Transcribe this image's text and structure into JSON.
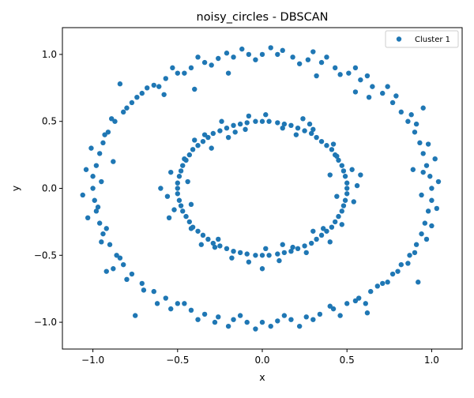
{
  "chart_data": {
    "type": "scatter",
    "title": "noisy_circles - DBSCAN",
    "xlabel": "x",
    "ylabel": "y",
    "xlim": [
      -1.18,
      1.18
    ],
    "ylim": [
      -1.2,
      1.2
    ],
    "xticks": [
      -1.0,
      -0.5,
      0.0,
      0.5,
      1.0
    ],
    "xtick_labels": [
      "−1.0",
      "−0.5",
      "0.0",
      "0.5",
      "1.0"
    ],
    "yticks": [
      -1.0,
      -0.5,
      0.0,
      0.5,
      1.0
    ],
    "ytick_labels": [
      "−1.0",
      "−0.5",
      "0.0",
      "0.5",
      "1.0"
    ],
    "grid": false,
    "legend": {
      "placement": "top-right",
      "entries": [
        "Cluster 1"
      ]
    },
    "series": [
      {
        "name": "Cluster 1",
        "color": "#1f77b4",
        "points": [
          [
            1.0,
            0.0
          ],
          [
            0.99,
            0.09
          ],
          [
            0.97,
            0.17
          ],
          [
            0.95,
            0.26
          ],
          [
            0.93,
            0.34
          ],
          [
            0.9,
            0.42
          ],
          [
            0.86,
            0.5
          ],
          [
            0.82,
            0.57
          ],
          [
            0.77,
            0.64
          ],
          [
            0.71,
            0.71
          ],
          [
            0.65,
            0.76
          ],
          [
            0.58,
            0.81
          ],
          [
            0.51,
            0.86
          ],
          [
            0.43,
            0.9
          ],
          [
            0.35,
            0.94
          ],
          [
            0.27,
            0.96
          ],
          [
            0.18,
            0.98
          ],
          [
            0.09,
            1.0
          ],
          [
            0.0,
            1.0
          ],
          [
            -0.08,
            1.0
          ],
          [
            -0.17,
            0.98
          ],
          [
            -0.26,
            0.97
          ],
          [
            -0.34,
            0.94
          ],
          [
            -0.42,
            0.9
          ],
          [
            -0.5,
            0.86
          ],
          [
            -0.57,
            0.82
          ],
          [
            -0.64,
            0.77
          ],
          [
            -0.71,
            0.71
          ],
          [
            -0.77,
            0.64
          ],
          [
            -0.82,
            0.57
          ],
          [
            -0.87,
            0.5
          ],
          [
            -0.91,
            0.42
          ],
          [
            -0.94,
            0.34
          ],
          [
            -0.96,
            0.26
          ],
          [
            -0.98,
            0.17
          ],
          [
            -1.0,
            0.09
          ],
          [
            -1.0,
            0.0
          ],
          [
            -0.99,
            -0.09
          ],
          [
            -0.98,
            -0.17
          ],
          [
            -0.96,
            -0.26
          ],
          [
            -0.94,
            -0.34
          ],
          [
            -0.9,
            -0.42
          ],
          [
            -0.86,
            -0.5
          ],
          [
            -0.82,
            -0.57
          ],
          [
            -0.77,
            -0.64
          ],
          [
            -0.71,
            -0.71
          ],
          [
            -0.64,
            -0.77
          ],
          [
            -0.57,
            -0.82
          ],
          [
            -0.5,
            -0.86
          ],
          [
            -0.42,
            -0.91
          ],
          [
            -0.34,
            -0.94
          ],
          [
            -0.26,
            -0.96
          ],
          [
            -0.17,
            -0.98
          ],
          [
            -0.09,
            -1.0
          ],
          [
            0.0,
            -1.0
          ],
          [
            0.09,
            -0.99
          ],
          [
            0.17,
            -0.98
          ],
          [
            0.26,
            -0.96
          ],
          [
            0.34,
            -0.94
          ],
          [
            0.42,
            -0.9
          ],
          [
            0.5,
            -0.86
          ],
          [
            0.57,
            -0.82
          ],
          [
            0.64,
            -0.77
          ],
          [
            0.71,
            -0.71
          ],
          [
            0.77,
            -0.64
          ],
          [
            0.82,
            -0.57
          ],
          [
            0.87,
            -0.5
          ],
          [
            0.91,
            -0.42
          ],
          [
            0.94,
            -0.34
          ],
          [
            0.96,
            -0.26
          ],
          [
            0.98,
            -0.17
          ],
          [
            1.0,
            -0.09
          ],
          [
            1.04,
            0.05
          ],
          [
            0.95,
            0.12
          ],
          [
            1.02,
            0.22
          ],
          [
            0.98,
            0.33
          ],
          [
            0.91,
            0.48
          ],
          [
            0.88,
            0.55
          ],
          [
            0.79,
            0.69
          ],
          [
            0.74,
            0.76
          ],
          [
            0.62,
            0.84
          ],
          [
            0.55,
            0.9
          ],
          [
            0.46,
            0.85
          ],
          [
            0.38,
            0.98
          ],
          [
            0.3,
            1.02
          ],
          [
            0.22,
            0.93
          ],
          [
            0.12,
            1.03
          ],
          [
            0.05,
            1.05
          ],
          [
            -0.04,
            0.96
          ],
          [
            -0.12,
            1.04
          ],
          [
            -0.21,
            1.01
          ],
          [
            -0.3,
            0.92
          ],
          [
            -0.38,
            0.98
          ],
          [
            -0.46,
            0.86
          ],
          [
            -0.53,
            0.9
          ],
          [
            -0.61,
            0.76
          ],
          [
            -0.68,
            0.75
          ],
          [
            -0.74,
            0.68
          ],
          [
            -0.8,
            0.6
          ],
          [
            -0.89,
            0.52
          ],
          [
            -0.93,
            0.4
          ],
          [
            -1.01,
            0.3
          ],
          [
            -1.04,
            0.14
          ],
          [
            -0.95,
            0.05
          ],
          [
            -1.06,
            -0.05
          ],
          [
            -0.97,
            -0.14
          ],
          [
            -1.03,
            -0.22
          ],
          [
            -0.92,
            -0.3
          ],
          [
            -0.95,
            -0.4
          ],
          [
            -0.84,
            -0.52
          ],
          [
            -0.88,
            -0.6
          ],
          [
            -0.8,
            -0.68
          ],
          [
            -0.7,
            -0.76
          ],
          [
            -0.62,
            -0.86
          ],
          [
            -0.54,
            -0.9
          ],
          [
            -0.46,
            -0.86
          ],
          [
            -0.38,
            -0.98
          ],
          [
            -0.28,
            -1.0
          ],
          [
            -0.2,
            -1.03
          ],
          [
            -0.13,
            -0.95
          ],
          [
            -0.04,
            -1.05
          ],
          [
            0.05,
            -1.03
          ],
          [
            0.13,
            -0.95
          ],
          [
            0.22,
            -1.03
          ],
          [
            0.3,
            -0.98
          ],
          [
            0.4,
            -0.88
          ],
          [
            0.46,
            -0.95
          ],
          [
            0.55,
            -0.84
          ],
          [
            0.61,
            -0.86
          ],
          [
            0.68,
            -0.73
          ],
          [
            0.74,
            -0.7
          ],
          [
            0.8,
            -0.62
          ],
          [
            0.86,
            -0.56
          ],
          [
            0.9,
            -0.48
          ],
          [
            0.97,
            -0.38
          ],
          [
            1.0,
            -0.28
          ],
          [
            1.03,
            -0.15
          ],
          [
            0.94,
            -0.05
          ],
          [
            -0.84,
            0.78
          ],
          [
            -0.4,
            0.74
          ],
          [
            -0.2,
            0.86
          ],
          [
            0.32,
            0.84
          ],
          [
            0.55,
            0.72
          ],
          [
            0.95,
            0.6
          ],
          [
            -0.92,
            -0.62
          ],
          [
            -0.75,
            -0.95
          ],
          [
            0.62,
            -0.93
          ],
          [
            0.92,
            -0.7
          ],
          [
            0.89,
            0.14
          ],
          [
            -0.88,
            0.2
          ],
          [
            0.63,
            0.68
          ],
          [
            -0.58,
            0.7
          ],
          [
            0.5,
            0.0
          ],
          [
            0.5,
            0.04
          ],
          [
            0.49,
            0.09
          ],
          [
            0.48,
            0.13
          ],
          [
            0.47,
            0.17
          ],
          [
            0.45,
            0.21
          ],
          [
            0.43,
            0.25
          ],
          [
            0.41,
            0.29
          ],
          [
            0.38,
            0.32
          ],
          [
            0.35,
            0.35
          ],
          [
            0.32,
            0.38
          ],
          [
            0.29,
            0.41
          ],
          [
            0.25,
            0.43
          ],
          [
            0.21,
            0.45
          ],
          [
            0.17,
            0.47
          ],
          [
            0.13,
            0.48
          ],
          [
            0.09,
            0.49
          ],
          [
            0.04,
            0.5
          ],
          [
            0.0,
            0.5
          ],
          [
            -0.04,
            0.5
          ],
          [
            -0.09,
            0.49
          ],
          [
            -0.13,
            0.48
          ],
          [
            -0.17,
            0.47
          ],
          [
            -0.21,
            0.45
          ],
          [
            -0.25,
            0.43
          ],
          [
            -0.29,
            0.41
          ],
          [
            -0.32,
            0.38
          ],
          [
            -0.35,
            0.35
          ],
          [
            -0.38,
            0.32
          ],
          [
            -0.41,
            0.29
          ],
          [
            -0.43,
            0.25
          ],
          [
            -0.45,
            0.21
          ],
          [
            -0.47,
            0.17
          ],
          [
            -0.48,
            0.13
          ],
          [
            -0.49,
            0.09
          ],
          [
            -0.5,
            0.04
          ],
          [
            -0.5,
            0.0
          ],
          [
            -0.5,
            -0.04
          ],
          [
            -0.49,
            -0.09
          ],
          [
            -0.48,
            -0.13
          ],
          [
            -0.47,
            -0.17
          ],
          [
            -0.45,
            -0.21
          ],
          [
            -0.43,
            -0.25
          ],
          [
            -0.41,
            -0.29
          ],
          [
            -0.38,
            -0.32
          ],
          [
            -0.35,
            -0.35
          ],
          [
            -0.32,
            -0.38
          ],
          [
            -0.29,
            -0.41
          ],
          [
            -0.25,
            -0.43
          ],
          [
            -0.21,
            -0.45
          ],
          [
            -0.17,
            -0.47
          ],
          [
            -0.13,
            -0.48
          ],
          [
            -0.09,
            -0.49
          ],
          [
            -0.04,
            -0.5
          ],
          [
            0.0,
            -0.5
          ],
          [
            0.04,
            -0.5
          ],
          [
            0.09,
            -0.49
          ],
          [
            0.13,
            -0.48
          ],
          [
            0.17,
            -0.47
          ],
          [
            0.21,
            -0.45
          ],
          [
            0.25,
            -0.43
          ],
          [
            0.29,
            -0.41
          ],
          [
            0.32,
            -0.38
          ],
          [
            0.35,
            -0.35
          ],
          [
            0.38,
            -0.32
          ],
          [
            0.41,
            -0.29
          ],
          [
            0.43,
            -0.25
          ],
          [
            0.45,
            -0.21
          ],
          [
            0.47,
            -0.17
          ],
          [
            0.48,
            -0.13
          ],
          [
            0.49,
            -0.09
          ],
          [
            0.5,
            -0.04
          ],
          [
            0.56,
            0.02
          ],
          [
            0.53,
            0.14
          ],
          [
            0.44,
            0.24
          ],
          [
            0.42,
            0.33
          ],
          [
            0.3,
            0.44
          ],
          [
            0.24,
            0.52
          ],
          [
            0.12,
            0.45
          ],
          [
            0.02,
            0.55
          ],
          [
            -0.08,
            0.54
          ],
          [
            -0.16,
            0.42
          ],
          [
            -0.24,
            0.5
          ],
          [
            -0.34,
            0.4
          ],
          [
            -0.4,
            0.36
          ],
          [
            -0.46,
            0.22
          ],
          [
            -0.54,
            0.12
          ],
          [
            -0.44,
            0.05
          ],
          [
            -0.56,
            -0.06
          ],
          [
            -0.52,
            -0.16
          ],
          [
            -0.42,
            -0.3
          ],
          [
            -0.36,
            -0.42
          ],
          [
            -0.28,
            -0.44
          ],
          [
            -0.18,
            -0.52
          ],
          [
            -0.08,
            -0.55
          ],
          [
            0.02,
            -0.45
          ],
          [
            0.1,
            -0.54
          ],
          [
            0.18,
            -0.44
          ],
          [
            0.26,
            -0.48
          ],
          [
            0.36,
            -0.3
          ],
          [
            0.4,
            -0.4
          ],
          [
            0.47,
            -0.27
          ],
          [
            0.54,
            -0.1
          ],
          [
            0.44,
            -0.06
          ],
          [
            -0.2,
            0.38
          ],
          [
            0.2,
            0.4
          ],
          [
            -0.42,
            -0.12
          ],
          [
            0.4,
            0.1
          ],
          [
            -0.3,
            0.3
          ],
          [
            0.3,
            -0.32
          ],
          [
            0.0,
            -0.6
          ],
          [
            0.58,
            0.1
          ],
          [
            -0.6,
            0.0
          ],
          [
            -0.55,
            -0.22
          ],
          [
            0.28,
            0.48
          ],
          [
            -0.1,
            0.44
          ],
          [
            0.12,
            -0.42
          ],
          [
            -0.26,
            -0.38
          ]
        ]
      }
    ]
  }
}
